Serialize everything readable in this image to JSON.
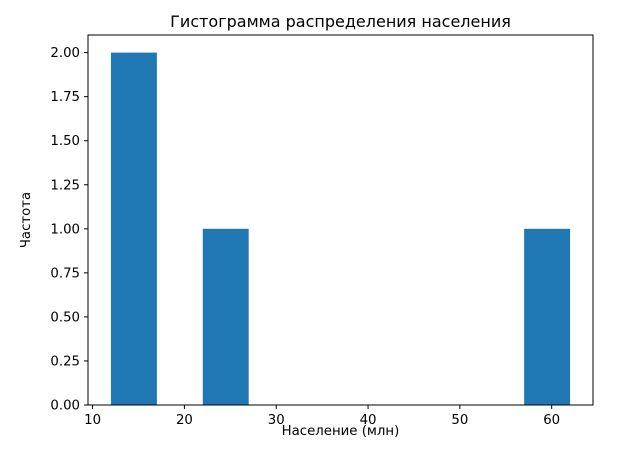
{
  "figure": {
    "title": "Гистограмма распределения населения",
    "xlabel": "Население (млн)",
    "ylabel": "Частота"
  },
  "chart_data": {
    "type": "bar",
    "subtype": "histogram",
    "title": "Гистограмма распределения населения",
    "xlabel": "Население (млн)",
    "ylabel": "Частота",
    "bars": [
      {
        "x_start": 12,
        "x_end": 17,
        "frequency": 2
      },
      {
        "x_start": 22,
        "x_end": 27,
        "frequency": 1
      },
      {
        "x_start": 57,
        "x_end": 62,
        "frequency": 1
      }
    ],
    "xticks": [
      10,
      20,
      30,
      40,
      50,
      60
    ],
    "yticks": [
      0.0,
      0.25,
      0.5,
      0.75,
      1.0,
      1.25,
      1.5,
      1.75,
      2.0
    ],
    "ytick_labels": [
      "0.00",
      "0.25",
      "0.50",
      "0.75",
      "1.00",
      "1.25",
      "1.50",
      "1.75",
      "2.00"
    ],
    "xlim": [
      9.5,
      64.5
    ],
    "ylim": [
      0,
      2.1
    ],
    "bar_color": "#1f77b4",
    "axis_color": "#000000",
    "background_color": "#ffffff",
    "grid": false,
    "legend_position": "none"
  }
}
